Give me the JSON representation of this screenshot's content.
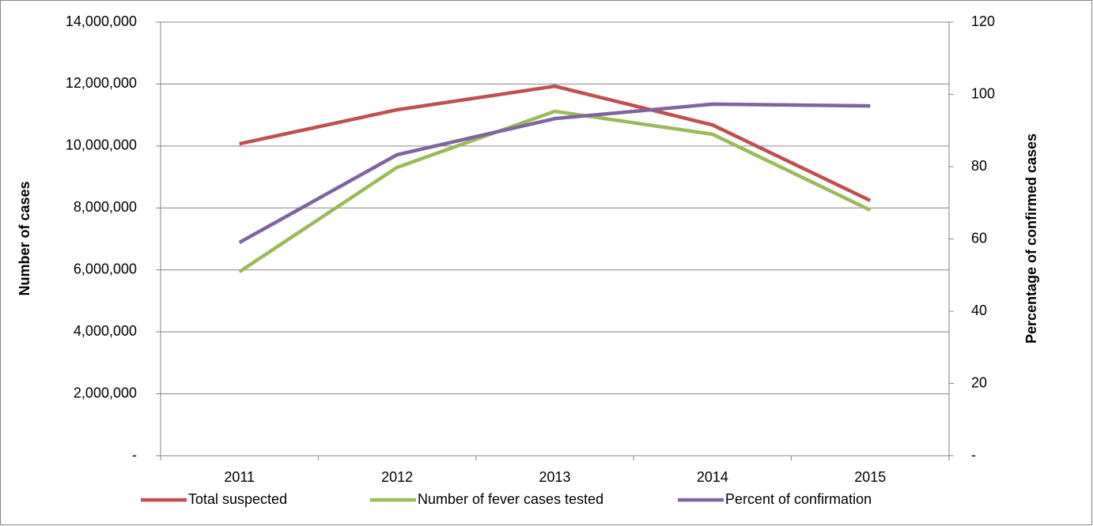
{
  "chart_data": {
    "type": "line",
    "categories": [
      "2011",
      "2012",
      "2013",
      "2014",
      "2015"
    ],
    "y_label": "Number of cases",
    "y2_label": "Percentage of confirmed cases",
    "ylim": [
      0,
      14000000
    ],
    "yticks": [
      {
        "value": 0,
        "label": "-"
      },
      {
        "value": 2000000,
        "label": "2,000,000"
      },
      {
        "value": 4000000,
        "label": "4,000,000"
      },
      {
        "value": 6000000,
        "label": "6,000,000"
      },
      {
        "value": 8000000,
        "label": "8,000,000"
      },
      {
        "value": 10000000,
        "label": "10,000,000"
      },
      {
        "value": 12000000,
        "label": "12,000,000"
      },
      {
        "value": 14000000,
        "label": "14,000,000"
      }
    ],
    "y2lim": [
      0,
      120
    ],
    "y2ticks": [
      {
        "value": 0,
        "label": "-"
      },
      20,
      40,
      60,
      80,
      100,
      120
    ],
    "grid": true,
    "legend": "bottom",
    "series": [
      {
        "name": "Total suspected",
        "color": "#c0504d",
        "values": [
          10070000,
          11170000,
          11930000,
          10680000,
          8240000
        ]
      },
      {
        "name": "Number of fever cases tested",
        "color": "#9bbb59",
        "values": [
          5940000,
          9310000,
          11120000,
          10380000,
          7930000
        ]
      },
      {
        "name": "Percent of confirmation",
        "color": "#8064a2",
        "axis": "y2",
        "values": [
          59.0,
          83.3,
          93.3,
          97.3,
          96.8
        ]
      }
    ]
  }
}
